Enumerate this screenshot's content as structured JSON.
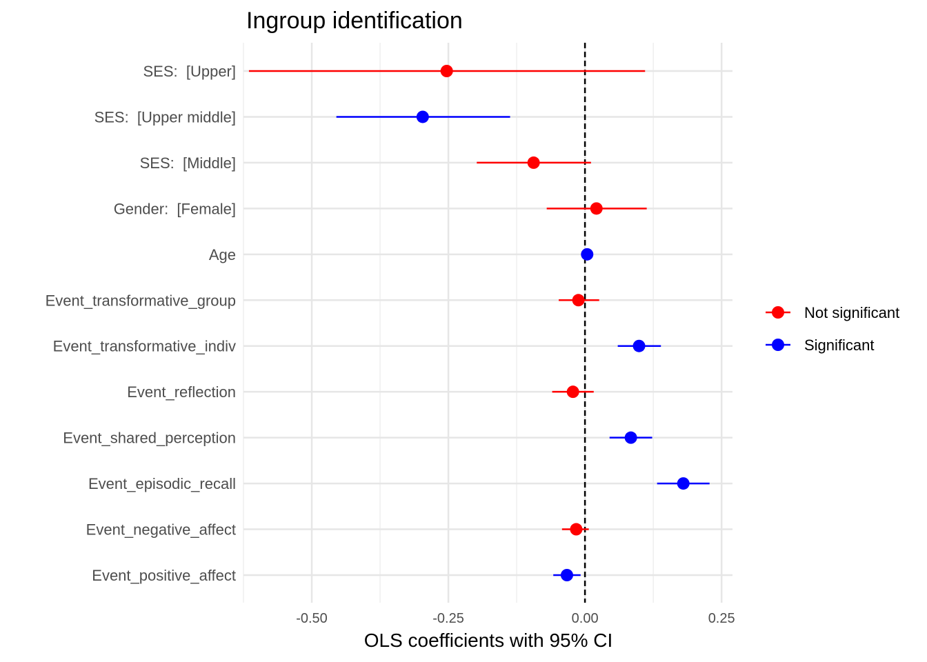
{
  "chart_data": {
    "type": "forest",
    "title": "Ingroup identification",
    "xlabel": "OLS coefficients with 95% CI",
    "ylabel": "",
    "xlim": [
      -0.625,
      0.27
    ],
    "x_ticks": [
      -0.5,
      -0.25,
      0.0,
      0.25
    ],
    "x_tick_labels": [
      "-0.50",
      "-0.25",
      "0.00",
      "0.25"
    ],
    "reference_line": 0,
    "grid": true,
    "legend_position": "right",
    "legend": [
      {
        "label": "Not significant",
        "color": "#ff0000",
        "key": "ns"
      },
      {
        "label": "Significant",
        "color": "#0000ff",
        "key": "sig"
      }
    ],
    "terms": [
      {
        "label": "SES:  [Upper]",
        "estimate": -0.253,
        "ci_low": -0.615,
        "ci_high": 0.11,
        "group": "ns"
      },
      {
        "label": "SES:  [Upper middle]",
        "estimate": -0.297,
        "ci_low": -0.455,
        "ci_high": -0.137,
        "group": "sig"
      },
      {
        "label": "SES:  [Middle]",
        "estimate": -0.094,
        "ci_low": -0.198,
        "ci_high": 0.011,
        "group": "ns"
      },
      {
        "label": "Gender:  [Female]",
        "estimate": 0.021,
        "ci_low": -0.07,
        "ci_high": 0.113,
        "group": "ns"
      },
      {
        "label": "Age",
        "estimate": 0.004,
        "ci_low": 0.001,
        "ci_high": 0.007,
        "group": "sig"
      },
      {
        "label": "Event_transformative_group",
        "estimate": -0.012,
        "ci_low": -0.048,
        "ci_high": 0.026,
        "group": "ns"
      },
      {
        "label": "Event_transformative_indiv",
        "estimate": 0.099,
        "ci_low": 0.06,
        "ci_high": 0.139,
        "group": "sig"
      },
      {
        "label": "Event_reflection",
        "estimate": -0.022,
        "ci_low": -0.06,
        "ci_high": 0.016,
        "group": "ns"
      },
      {
        "label": "Event_shared_perception",
        "estimate": 0.084,
        "ci_low": 0.045,
        "ci_high": 0.123,
        "group": "sig"
      },
      {
        "label": "Event_episodic_recall",
        "estimate": 0.18,
        "ci_low": 0.132,
        "ci_high": 0.228,
        "group": "sig"
      },
      {
        "label": "Event_negative_affect",
        "estimate": -0.016,
        "ci_low": -0.042,
        "ci_high": 0.007,
        "group": "ns"
      },
      {
        "label": "Event_positive_affect",
        "estimate": -0.033,
        "ci_low": -0.058,
        "ci_high": -0.008,
        "group": "sig"
      }
    ]
  }
}
